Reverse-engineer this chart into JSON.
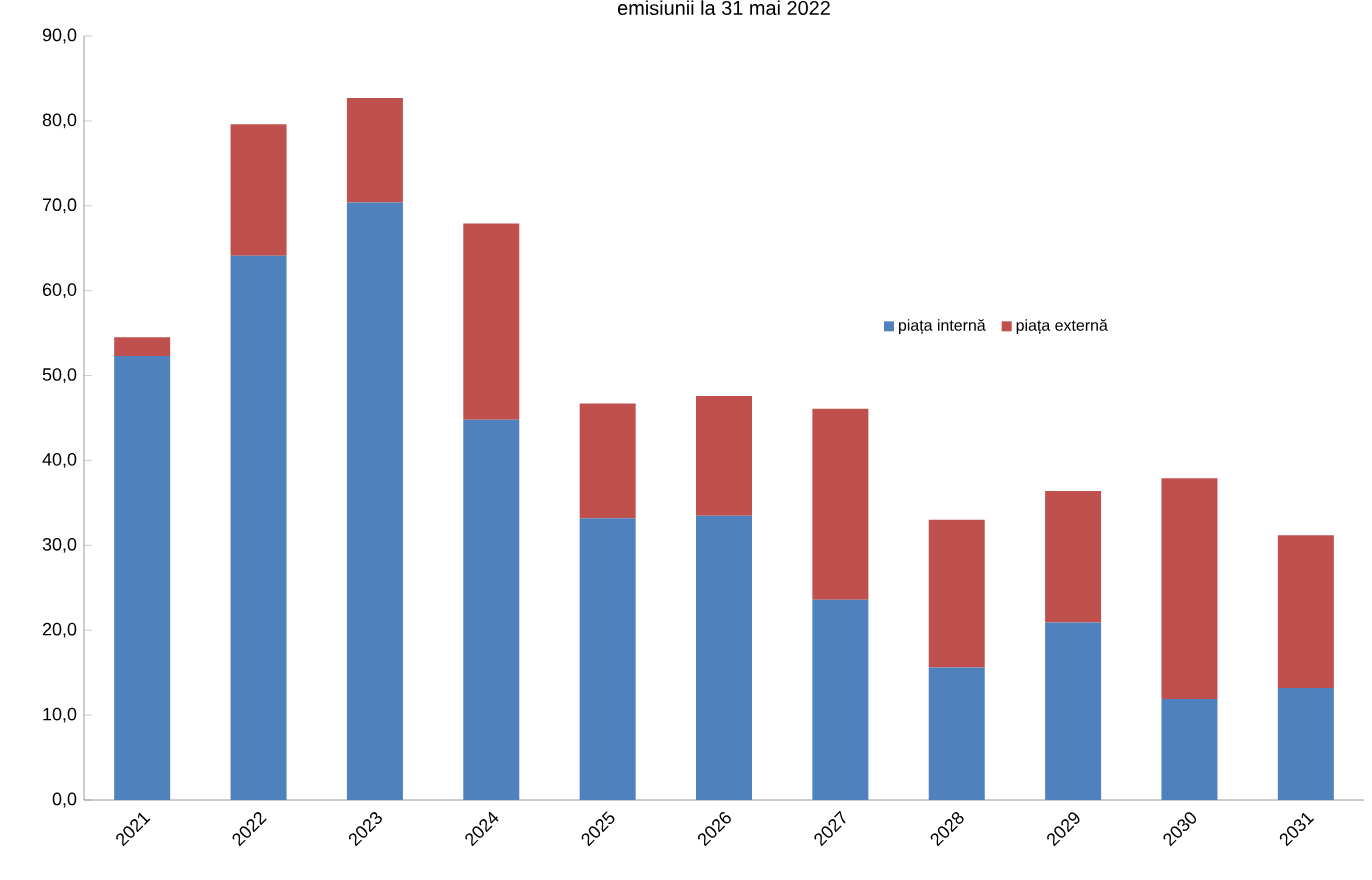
{
  "chart_data": {
    "type": "bar",
    "stacked": true,
    "title": "emisiunii la 31 mai 2022",
    "categories": [
      "2021",
      "2022",
      "2023",
      "2024",
      "2025",
      "2026",
      "2027",
      "2028",
      "2029",
      "2030",
      "2031"
    ],
    "series": [
      {
        "name": "piața internă",
        "color": "#4f81bd",
        "values": [
          52.3,
          64.1,
          70.4,
          44.8,
          33.2,
          33.5,
          23.6,
          15.6,
          20.9,
          11.9,
          13.2
        ]
      },
      {
        "name": "piața externă",
        "color": "#c0504d",
        "values": [
          2.2,
          15.5,
          12.3,
          23.1,
          13.5,
          14.1,
          22.5,
          17.4,
          15.5,
          26.0,
          18.0
        ]
      }
    ],
    "ylim": [
      0,
      90
    ],
    "yticks": [
      {
        "value": 0,
        "label": "0,0"
      },
      {
        "value": 10,
        "label": "10,0"
      },
      {
        "value": 20,
        "label": "20,0"
      },
      {
        "value": 30,
        "label": "30,0"
      },
      {
        "value": 40,
        "label": "40,0"
      },
      {
        "value": 50,
        "label": "50,0"
      },
      {
        "value": 60,
        "label": "60,0"
      },
      {
        "value": 70,
        "label": "70,0"
      },
      {
        "value": 80,
        "label": "80,0"
      },
      {
        "value": 90,
        "label": "90,0"
      }
    ],
    "grid": false,
    "legend": "right"
  }
}
